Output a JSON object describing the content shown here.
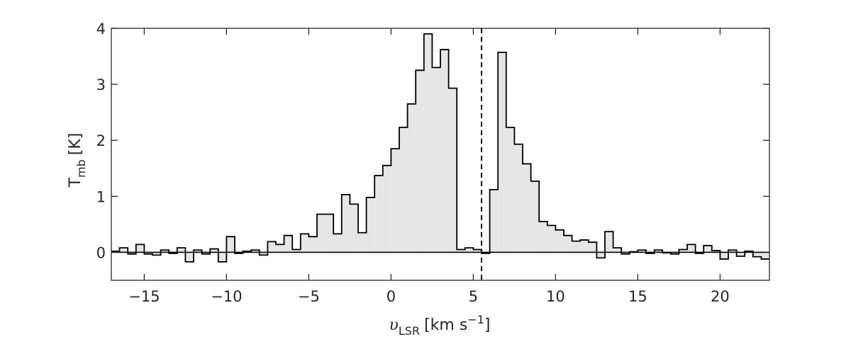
{
  "chart_data": {
    "type": "area",
    "title": "",
    "xlabel": {
      "symbol": "υ",
      "subscript": "LSR",
      "units": "[km s",
      "superscript": "−1",
      "close": "]"
    },
    "ylabel": {
      "main": "T",
      "subscript": "mb",
      "units": "[K]"
    },
    "xlim": [
      -17,
      23
    ],
    "ylim": [
      -0.5,
      4
    ],
    "grid": false,
    "legend": "none",
    "x_ticks": [
      -15,
      -10,
      -5,
      0,
      5,
      10,
      15,
      20
    ],
    "x_tick_labels": [
      "−15",
      "−10",
      "−5",
      "0",
      "5",
      "10",
      "15",
      "20"
    ],
    "y_ticks": [
      0,
      1,
      2,
      3,
      4
    ],
    "y_tick_labels": [
      "0",
      "1",
      "2",
      "3",
      "4"
    ],
    "dashed_line_x": 5.5,
    "baseline_y": 0,
    "step_width": 0.5,
    "bin_start": -17,
    "series": [
      {
        "style": "step-filled",
        "fill_color": "#e6e6e6",
        "line_color": "#000000",
        "values": [
          0.02,
          0.08,
          -0.03,
          0.14,
          -0.03,
          -0.05,
          0.04,
          -0.02,
          0.08,
          -0.17,
          0.04,
          -0.03,
          0.06,
          -0.17,
          0.28,
          -0.02,
          0.02,
          0.04,
          -0.05,
          0.19,
          0.14,
          0.3,
          0.05,
          0.33,
          0.28,
          0.68,
          0.68,
          0.33,
          1.03,
          0.86,
          0.35,
          0.98,
          1.37,
          1.55,
          1.85,
          2.23,
          2.65,
          3.25,
          3.9,
          3.3,
          3.62,
          2.93,
          0.05,
          0.08,
          0.05,
          -0.02,
          1.12,
          3.57,
          2.23,
          1.93,
          1.58,
          1.27,
          0.55,
          0.48,
          0.4,
          0.3,
          0.2,
          0.22,
          0.18,
          -0.1,
          0.37,
          0.08,
          -0.03,
          0.01,
          0.04,
          -0.02,
          0.04,
          -0.01,
          -0.03,
          0.05,
          0.14,
          -0.02,
          0.12,
          0.03,
          -0.12,
          0.04,
          -0.07,
          0.02,
          -0.08,
          -0.12
        ]
      }
    ]
  }
}
